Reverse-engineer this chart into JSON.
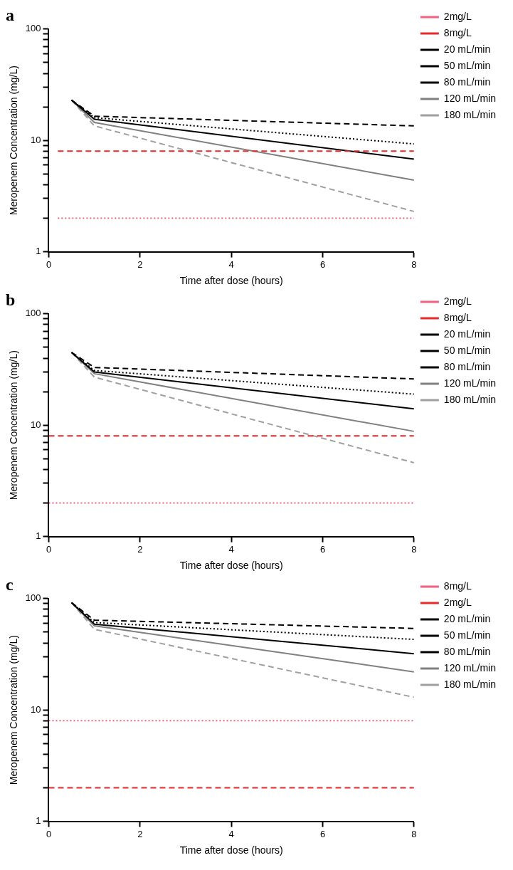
{
  "chart_data": [
    {
      "type": "line",
      "title": "a",
      "xlabel": "Time after dose (hours)",
      "ylabel": "Meropenem Concentration (mg/L)",
      "log": "y",
      "xlim": [
        0,
        8
      ],
      "xticks": [
        0,
        2,
        4,
        6,
        8
      ],
      "ylim": [
        1,
        100
      ],
      "yticks": [
        1,
        {
          "value": 2,
          "label": null
        },
        {
          "value": 3,
          "label": null
        },
        {
          "value": 4,
          "label": null
        },
        {
          "value": 5,
          "label": null
        },
        {
          "value": 6,
          "label": null
        },
        {
          "value": 7,
          "label": null
        },
        {
          "value": 8,
          "label": null
        },
        {
          "value": 9,
          "label": null
        },
        10,
        {
          "value": 20,
          "label": null
        },
        {
          "value": 30,
          "label": null
        },
        {
          "value": 40,
          "label": null
        },
        {
          "value": 50,
          "label": null
        },
        {
          "value": 60,
          "label": null
        },
        {
          "value": 70,
          "label": null
        },
        {
          "value": 80,
          "label": null
        },
        {
          "value": 90,
          "label": null
        },
        100
      ],
      "grid": false,
      "legend": "right",
      "marker": "none",
      "series": [
        {
          "name": "2mg/L",
          "color": "#f06080",
          "line_style": "dotted",
          "x": [
            0.2,
            8
          ],
          "values": [
            2,
            2
          ]
        },
        {
          "name": "8mg/L",
          "color": "#e62a2a",
          "line_style": "dashed",
          "x": [
            0.2,
            8
          ],
          "values": [
            8,
            8
          ]
        },
        {
          "name": "20 mL/min",
          "color": "#000000",
          "line_style": "dashed",
          "x": [
            0.5,
            1,
            8
          ],
          "values": [
            23,
            16.5,
            13.5
          ]
        },
        {
          "name": "50 mL/min",
          "color": "#000000",
          "line_style": "dotted",
          "x": [
            0.5,
            1,
            8
          ],
          "values": [
            23,
            16,
            9.3
          ]
        },
        {
          "name": "80 mL/min",
          "color": "#000000",
          "line_style": "solid",
          "x": [
            0.5,
            1,
            8
          ],
          "values": [
            23,
            15.5,
            6.8
          ]
        },
        {
          "name": "120 mL/min",
          "color": "#808080",
          "line_style": "solid",
          "x": [
            0.5,
            1,
            8
          ],
          "values": [
            23,
            14.5,
            4.4
          ]
        },
        {
          "name": "180 mL/min",
          "color": "#a0a0a0",
          "line_style": "dashed",
          "x": [
            0.5,
            1,
            8
          ],
          "values": [
            23,
            13.5,
            2.3
          ]
        }
      ]
    },
    {
      "type": "line",
      "title": "b",
      "xlabel": "Time after dose (hours)",
      "ylabel": "Meropenem Concentration (mg/L)",
      "log": "y",
      "xlim": [
        0,
        8
      ],
      "xticks": [
        0,
        2,
        4,
        6,
        8
      ],
      "ylim": [
        1,
        100
      ],
      "yticks": [
        1,
        {
          "value": 2,
          "label": null
        },
        {
          "value": 3,
          "label": null
        },
        {
          "value": 4,
          "label": null
        },
        {
          "value": 5,
          "label": null
        },
        {
          "value": 6,
          "label": null
        },
        {
          "value": 7,
          "label": null
        },
        {
          "value": 8,
          "label": null
        },
        {
          "value": 9,
          "label": null
        },
        10,
        {
          "value": 20,
          "label": null
        },
        {
          "value": 30,
          "label": null
        },
        {
          "value": 40,
          "label": null
        },
        {
          "value": 50,
          "label": null
        },
        {
          "value": 60,
          "label": null
        },
        {
          "value": 70,
          "label": null
        },
        {
          "value": 80,
          "label": null
        },
        {
          "value": 90,
          "label": null
        },
        100
      ],
      "grid": false,
      "legend": "right",
      "marker": "none",
      "series": [
        {
          "name": "2mg/L",
          "color": "#f06080",
          "line_style": "dotted",
          "x": [
            0,
            8
          ],
          "values": [
            2,
            2
          ]
        },
        {
          "name": "8mg/L",
          "color": "#e62a2a",
          "line_style": "dashed",
          "x": [
            0,
            8
          ],
          "values": [
            8,
            8
          ]
        },
        {
          "name": "20 mL/min",
          "color": "#000000",
          "line_style": "dashed",
          "x": [
            0.5,
            1,
            8
          ],
          "values": [
            45,
            33,
            26
          ]
        },
        {
          "name": "50 mL/min",
          "color": "#000000",
          "line_style": "dotted",
          "x": [
            0.5,
            1,
            8
          ],
          "values": [
            45,
            31,
            19
          ]
        },
        {
          "name": "80 mL/min",
          "color": "#000000",
          "line_style": "solid",
          "x": [
            0.5,
            1,
            8
          ],
          "values": [
            45,
            30,
            14
          ]
        },
        {
          "name": "120 mL/min",
          "color": "#808080",
          "line_style": "solid",
          "x": [
            0.5,
            1,
            8
          ],
          "values": [
            45,
            29,
            8.8
          ]
        },
        {
          "name": "180 mL/min",
          "color": "#a0a0a0",
          "line_style": "dashed",
          "x": [
            0.5,
            1,
            8
          ],
          "values": [
            45,
            27,
            4.6
          ]
        }
      ]
    },
    {
      "type": "line",
      "title": "c",
      "xlabel": "Time after dose (hours)",
      "ylabel": "Meropenem Concentration (mg/L)",
      "log": "y",
      "xlim": [
        0,
        8
      ],
      "xticks": [
        0,
        2,
        4,
        6,
        8
      ],
      "ylim": [
        1,
        100
      ],
      "yticks": [
        1,
        {
          "value": 2,
          "label": null
        },
        {
          "value": 3,
          "label": null
        },
        {
          "value": 4,
          "label": null
        },
        {
          "value": 5,
          "label": null
        },
        {
          "value": 6,
          "label": null
        },
        {
          "value": 7,
          "label": null
        },
        {
          "value": 8,
          "label": null
        },
        {
          "value": 9,
          "label": null
        },
        10,
        {
          "value": 20,
          "label": null
        },
        {
          "value": 30,
          "label": null
        },
        {
          "value": 40,
          "label": null
        },
        {
          "value": 50,
          "label": null
        },
        {
          "value": 60,
          "label": null
        },
        {
          "value": 70,
          "label": null
        },
        {
          "value": 80,
          "label": null
        },
        {
          "value": 90,
          "label": null
        },
        100
      ],
      "grid": false,
      "legend": "right",
      "marker": "none",
      "series": [
        {
          "name": "8mg/L",
          "color": "#f06080",
          "line_style": "dotted",
          "x": [
            0,
            8
          ],
          "values": [
            8,
            8
          ]
        },
        {
          "name": "2mg/L",
          "color": "#e62a2a",
          "line_style": "dashed",
          "x": [
            0,
            8
          ],
          "values": [
            2,
            2
          ]
        },
        {
          "name": "20 mL/min",
          "color": "#000000",
          "line_style": "dashed",
          "x": [
            0.5,
            1,
            8
          ],
          "values": [
            92,
            64,
            54
          ]
        },
        {
          "name": "50 mL/min",
          "color": "#000000",
          "line_style": "dotted",
          "x": [
            0.5,
            1,
            8
          ],
          "values": [
            92,
            61,
            43
          ]
        },
        {
          "name": "80 mL/min",
          "color": "#000000",
          "line_style": "solid",
          "x": [
            0.5,
            1,
            8
          ],
          "values": [
            92,
            59,
            32
          ]
        },
        {
          "name": "120 mL/min",
          "color": "#808080",
          "line_style": "solid",
          "x": [
            0.5,
            1,
            8
          ],
          "values": [
            92,
            57,
            22
          ]
        },
        {
          "name": "180 mL/min",
          "color": "#a0a0a0",
          "line_style": "dashed",
          "x": [
            0.5,
            1,
            8
          ],
          "values": [
            92,
            53,
            13
          ]
        }
      ]
    }
  ]
}
